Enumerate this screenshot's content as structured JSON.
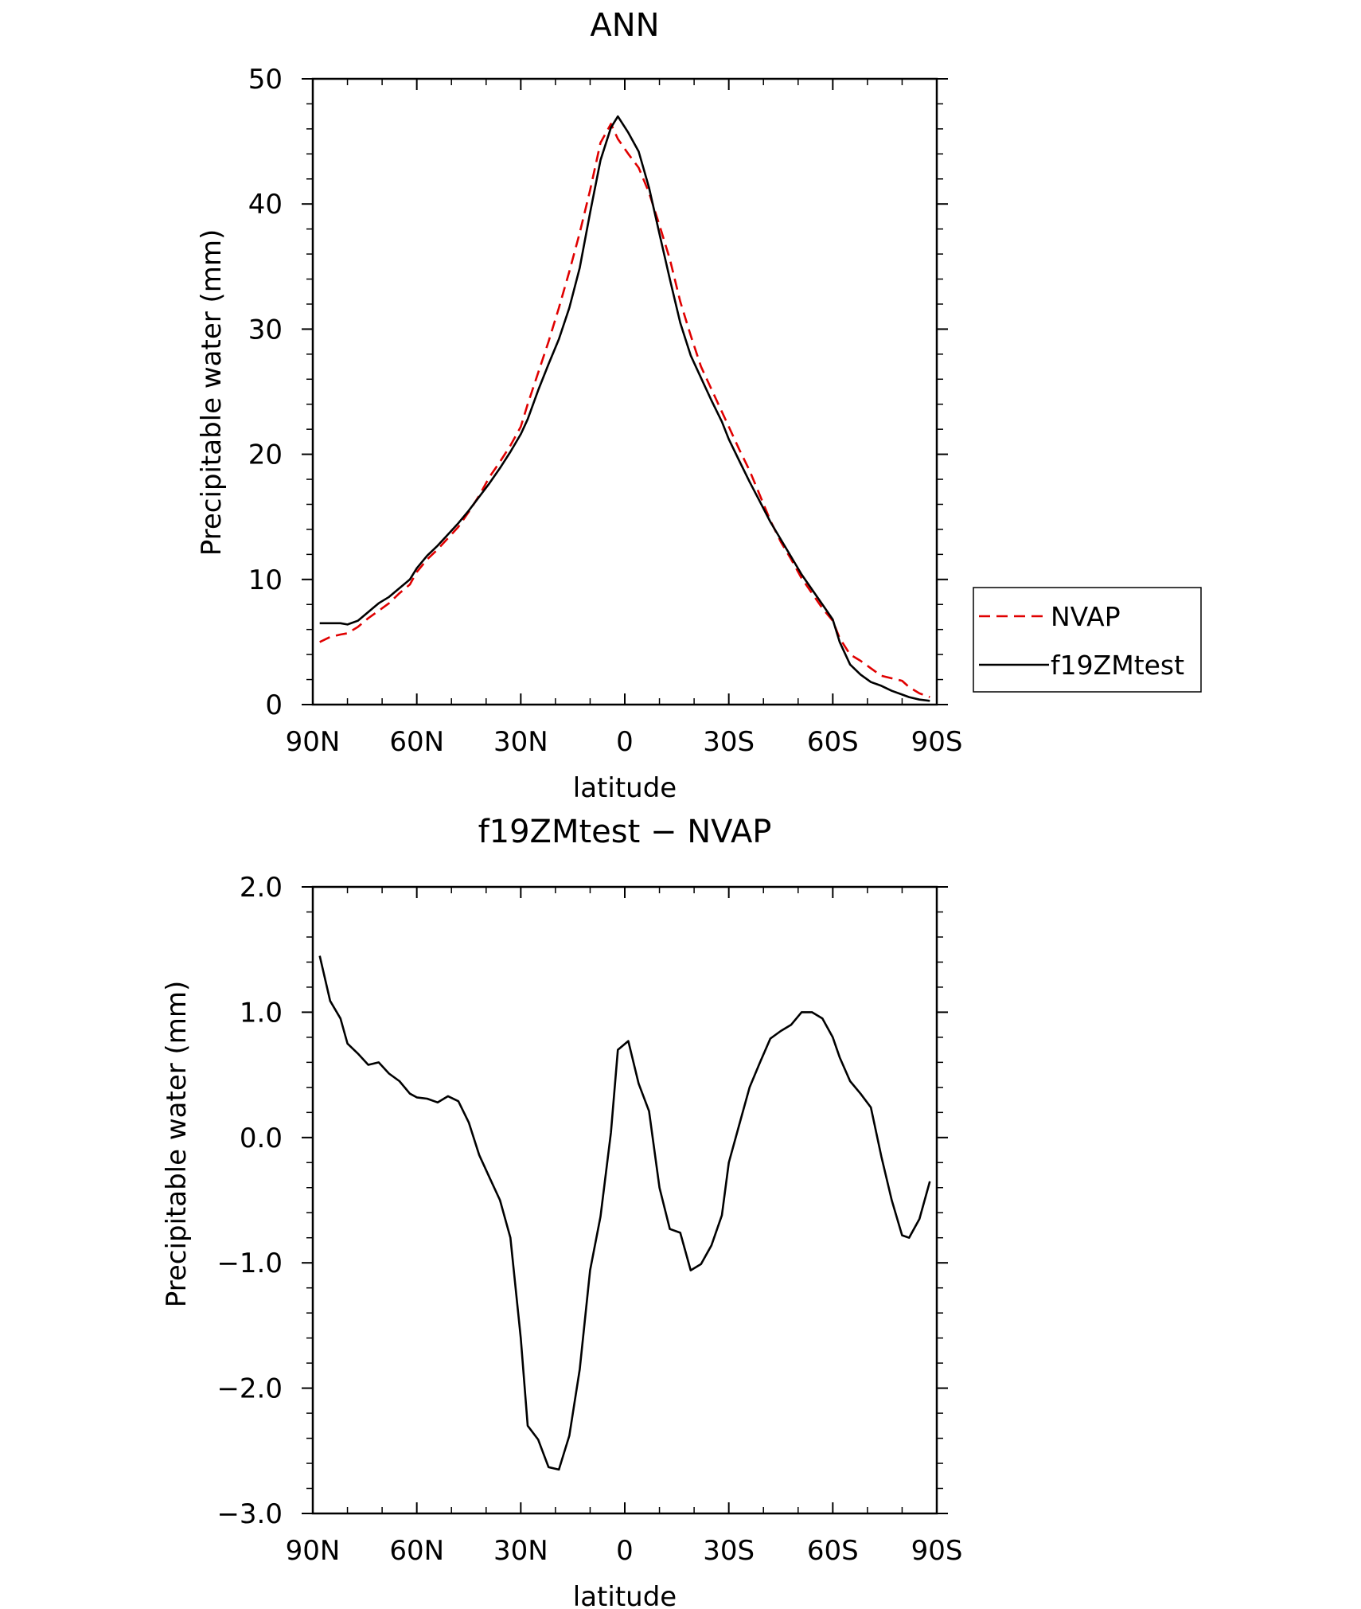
{
  "chart_data": [
    {
      "type": "line",
      "title": "ANN",
      "xlabel": "latitude",
      "ylabel": "Precipitable water (mm)",
      "xlim": [
        90,
        -90
      ],
      "ylim": [
        0,
        50
      ],
      "x_ticks": [
        90,
        60,
        30,
        0,
        -30,
        -60,
        -90
      ],
      "x_tick_labels": [
        "90N",
        "60N",
        "30N",
        "0",
        "30S",
        "60S",
        "90S"
      ],
      "y_ticks": [
        0,
        10,
        20,
        30,
        40,
        50
      ],
      "y_tick_labels": [
        "0",
        "10",
        "20",
        "30",
        "40",
        "50"
      ],
      "legend_position": "right",
      "x": [
        88,
        85,
        82,
        80,
        77,
        74,
        71,
        68,
        65,
        62,
        60,
        57,
        54,
        51,
        48,
        45,
        42,
        39,
        36,
        33,
        30,
        28,
        25,
        22,
        19,
        16,
        13,
        10,
        7,
        4,
        2,
        -1,
        -4,
        -7,
        -10,
        -13,
        -16,
        -19,
        -22,
        -25,
        -28,
        -30,
        -33,
        -36,
        -39,
        -42,
        -45,
        -48,
        -51,
        -54,
        -57,
        -60,
        -62,
        -65,
        -68,
        -71,
        -74,
        -77,
        -80,
        -82,
        -85,
        -88
      ],
      "series": [
        {
          "name": "NVAP",
          "color": "#e00000",
          "dash": true,
          "values": [
            5.0,
            5.4,
            5.6,
            5.7,
            6.2,
            6.9,
            7.5,
            8.1,
            8.9,
            9.6,
            10.6,
            11.6,
            12.4,
            13.3,
            14.2,
            15.4,
            16.7,
            18.2,
            19.4,
            20.7,
            22.2,
            24.0,
            26.5,
            29.0,
            31.7,
            34.6,
            37.7,
            41.1,
            44.9,
            46.4,
            45.2,
            44.0,
            42.9,
            40.9,
            38.3,
            35.6,
            32.2,
            29.5,
            27.0,
            25.2,
            23.4,
            22.2,
            20.4,
            18.7,
            16.7,
            14.7,
            13.0,
            11.6,
            10.1,
            8.9,
            7.7,
            6.7,
            5.3,
            4.0,
            3.5,
            2.9,
            2.3,
            2.1,
            1.9,
            1.4,
            0.9,
            0.6
          ]
        },
        {
          "name": "f19ZMtest",
          "color": "#000000",
          "dash": false,
          "values": [
            6.5,
            6.5,
            6.5,
            6.4,
            6.7,
            7.4,
            8.1,
            8.6,
            9.3,
            10.0,
            10.9,
            11.9,
            12.7,
            13.6,
            14.5,
            15.5,
            16.6,
            17.7,
            18.9,
            20.2,
            21.6,
            22.8,
            25.1,
            27.2,
            29.2,
            31.7,
            34.9,
            39.3,
            43.5,
            46.1,
            47.0,
            45.7,
            44.2,
            41.3,
            37.6,
            34.0,
            30.5,
            27.9,
            26.1,
            24.3,
            22.6,
            21.2,
            19.5,
            17.8,
            16.2,
            14.6,
            13.2,
            11.8,
            10.4,
            9.2,
            8.0,
            6.8,
            5.0,
            3.2,
            2.4,
            1.8,
            1.5,
            1.1,
            0.8,
            0.6,
            0.4,
            0.3
          ]
        }
      ]
    },
    {
      "type": "line",
      "title": "f19ZMtest − NVAP",
      "xlabel": "latitude",
      "ylabel": "Precipitable water (mm)",
      "xlim": [
        90,
        -90
      ],
      "ylim": [
        -3.0,
        2.0
      ],
      "x_ticks": [
        90,
        60,
        30,
        0,
        -30,
        -60,
        -90
      ],
      "x_tick_labels": [
        "90N",
        "60N",
        "30N",
        "0",
        "30S",
        "60S",
        "90S"
      ],
      "y_ticks": [
        -3.0,
        -2.0,
        -1.0,
        0.0,
        1.0,
        2.0
      ],
      "y_tick_labels": [
        "−3.0",
        "−2.0",
        "−1.0",
        "0.0",
        "1.0",
        "2.0"
      ],
      "x": [
        88,
        85,
        82,
        80,
        77,
        74,
        71,
        68,
        65,
        62,
        60,
        57,
        54,
        51,
        48,
        45,
        42,
        39,
        36,
        33,
        30,
        28,
        25,
        22,
        19,
        16,
        13,
        10,
        7,
        4,
        2,
        -1,
        -4,
        -7,
        -10,
        -13,
        -16,
        -19,
        -22,
        -25,
        -28,
        -30,
        -33,
        -36,
        -39,
        -42,
        -45,
        -48,
        -51,
        -54,
        -57,
        -60,
        -62,
        -65,
        -68,
        -71,
        -74,
        -77,
        -80,
        -82,
        -85,
        -88
      ],
      "series": [
        {
          "name": "",
          "color": "#000000",
          "dash": false,
          "values": [
            1.45,
            1.09,
            0.95,
            0.75,
            0.67,
            0.58,
            0.6,
            0.51,
            0.45,
            0.35,
            0.32,
            0.31,
            0.28,
            0.33,
            0.29,
            0.12,
            -0.14,
            -0.32,
            -0.5,
            -0.8,
            -1.6,
            -2.3,
            -2.41,
            -2.63,
            -2.65,
            -2.38,
            -1.85,
            -1.06,
            -0.63,
            0.04,
            0.7,
            0.77,
            0.43,
            0.21,
            -0.4,
            -0.73,
            -0.76,
            -1.06,
            -1.01,
            -0.86,
            -0.62,
            -0.2,
            0.1,
            0.4,
            0.6,
            0.79,
            0.85,
            0.9,
            1.0,
            1.0,
            0.95,
            0.8,
            0.64,
            0.45,
            0.35,
            0.24,
            -0.15,
            -0.5,
            -0.78,
            -0.8,
            -0.65,
            -0.35
          ]
        }
      ]
    }
  ]
}
